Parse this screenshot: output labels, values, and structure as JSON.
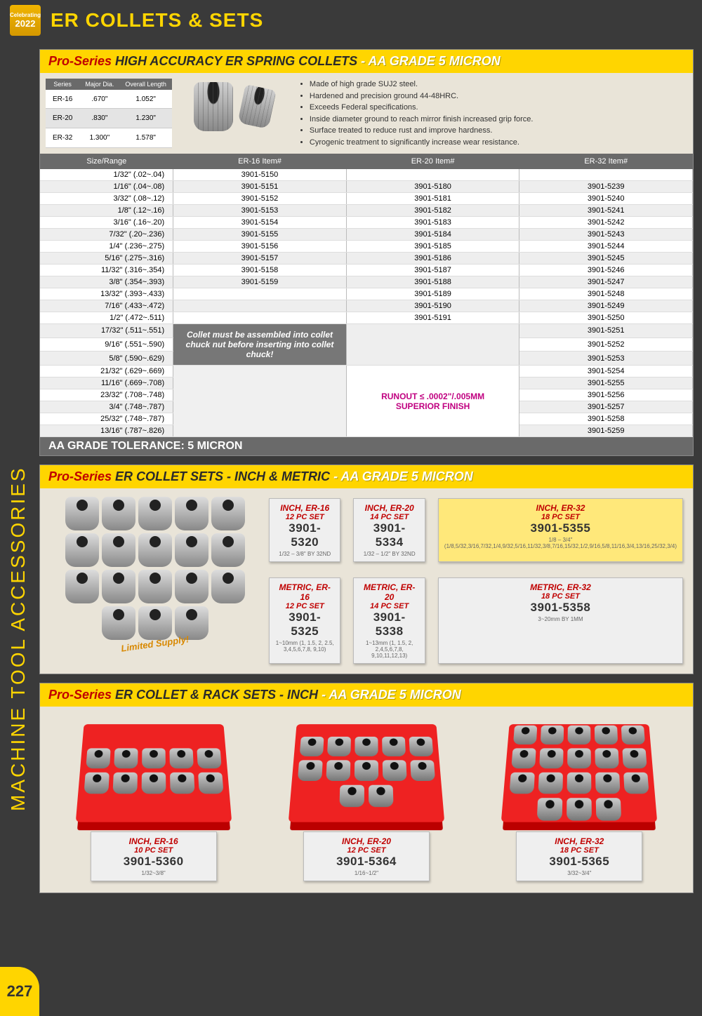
{
  "header": {
    "badge_top": "Celebrating",
    "badge_year": "2022",
    "title": "ER COLLETS & SETS"
  },
  "sidebar": {
    "text": "MACHINE TOOL ACCESSORIES",
    "page": "227"
  },
  "sec1": {
    "title_red": "Pro-Series ",
    "title_blk": "HIGH ACCURACY ER SPRING COLLETS ",
    "title_wh": "- AA GRADE 5 MICRON",
    "dim_head": [
      "Series",
      "Major Dia.",
      "Overall Length"
    ],
    "dim_rows": [
      [
        "ER-16",
        ".670\"",
        "1.052\""
      ],
      [
        "ER-20",
        ".830\"",
        "1.230\""
      ],
      [
        "ER-32",
        "1.300\"",
        "1.578\""
      ]
    ],
    "bullets": [
      "Made of high grade SUJ2 steel.",
      "Hardened and precision ground 44-48HRC.",
      "Exceeds Federal specifications.",
      "Inside diameter ground to reach mirror finish increased grip force.",
      "Surface treated to reduce rust and improve hardness.",
      "Cyrogenic treatment to significantly increase wear resistance."
    ],
    "cols": [
      "Size/Range",
      "ER-16 Item#",
      "ER-20 Item#",
      "ER-32 Item#"
    ],
    "rows": [
      {
        "s": "1/32\" (.02~.04)",
        "a": "3901-5150",
        "b": "",
        "c": ""
      },
      {
        "s": "1/16\" (.04~.08)",
        "a": "3901-5151",
        "b": "3901-5180",
        "c": "3901-5239"
      },
      {
        "s": "3/32\" (.08~.12)",
        "a": "3901-5152",
        "b": "3901-5181",
        "c": "3901-5240"
      },
      {
        "s": "1/8\" (.12~.16)",
        "a": "3901-5153",
        "b": "3901-5182",
        "c": "3901-5241"
      },
      {
        "s": "3/16\" (.16~.20)",
        "a": "3901-5154",
        "b": "3901-5183",
        "c": "3901-5242"
      },
      {
        "s": "7/32\" (.20~.236)",
        "a": "3901-5155",
        "b": "3901-5184",
        "c": "3901-5243"
      },
      {
        "s": "1/4\" (.236~.275)",
        "a": "3901-5156",
        "b": "3901-5185",
        "c": "3901-5244"
      },
      {
        "s": "5/16\" (.275~.316)",
        "a": "3901-5157",
        "b": "3901-5186",
        "c": "3901-5245"
      },
      {
        "s": "11/32\" (.316~.354)",
        "a": "3901-5158",
        "b": "3901-5187",
        "c": "3901-5246"
      },
      {
        "s": "3/8\" (.354~.393)",
        "a": "3901-5159",
        "b": "3901-5188",
        "c": "3901-5247"
      },
      {
        "s": "13/32\" (.393~.433)",
        "a": "",
        "b": "3901-5189",
        "c": "3901-5248"
      },
      {
        "s": "7/16\" (.433~.472)",
        "a": "",
        "b": "3901-5190",
        "c": "3901-5249"
      },
      {
        "s": "1/2\" (.472~.511)",
        "a": "",
        "b": "3901-5191",
        "c": "3901-5250"
      },
      {
        "s": "17/32\" (.511~.551)",
        "a": "",
        "b": "",
        "c": "3901-5251"
      },
      {
        "s": "9/16\" (.551~.590)",
        "a": "",
        "b": "",
        "c": "3901-5252"
      },
      {
        "s": "5/8\" (.590~.629)",
        "a": "",
        "b": "",
        "c": "3901-5253"
      },
      {
        "s": "21/32\" (.629~.669)",
        "a": "",
        "b": "",
        "c": "3901-5254"
      },
      {
        "s": "11/16\" (.669~.708)",
        "a": "",
        "b": "",
        "c": "3901-5255"
      },
      {
        "s": "23/32\" (.708~.748)",
        "a": "",
        "b": "",
        "c": "3901-5256"
      },
      {
        "s": "3/4\" (.748~.787)",
        "a": "",
        "b": "",
        "c": "3901-5257"
      },
      {
        "s": "25/32\" (.748~.787)",
        "a": "",
        "b": "",
        "c": "3901-5258"
      },
      {
        "s": "13/16\" (.787~.826)",
        "a": "",
        "b": "",
        "c": "3901-5259"
      }
    ],
    "note": "Collet must be assembled into collet chuck nut before inserting into collet chuck!",
    "runout1": "RUNOUT ≤ .0002\"/.005MM",
    "runout2": "SUPERIOR FINISH",
    "aa_bar": "AA GRADE TOLERANCE: 5 MICRON"
  },
  "sec2": {
    "title_red": "Pro-Series ",
    "title_blk": "ER COLLET SETS - INCH & METRIC ",
    "title_wh": "- AA GRADE 5 MICRON",
    "limited": "Limited Supply!",
    "boxes": [
      {
        "t": "INCH, ER-16",
        "p": "12 PC SET",
        "n": "3901-5320",
        "r": "1/32 – 3/8\" BY 32ND",
        "cls": ""
      },
      {
        "t": "INCH, ER-20",
        "p": "14 PC SET",
        "n": "3901-5334",
        "r": "1/32 – 1/2\" BY 32ND",
        "cls": ""
      },
      {
        "t": "INCH, ER-32",
        "p": "18 PC SET",
        "n": "3901-5355",
        "r": "1/8 – 3/4\" (1/8,5/32,3/16,7/32,1/4,9/32,5/16,11/32,3/8,7/16,15/32,1/2,9/16,5/8,11/16,3/4,13/16,25/32,3/4)",
        "cls": "yellow"
      },
      {
        "t": "METRIC, ER-16",
        "p": "12 PC SET",
        "n": "3901-5325",
        "r": "1~10mm (1, 1.5, 2, 2.5, 3,4,5,6,7,8, 9,10)",
        "cls": ""
      },
      {
        "t": "METRIC, ER-20",
        "p": "14 PC SET",
        "n": "3901-5338",
        "r": "1~13mm (1, 1.5, 2, 2,4,5,6,7,8, 9,10,11,12,13)",
        "cls": ""
      },
      {
        "t": "METRIC, ER-32",
        "p": "18 PC SET",
        "n": "3901-5358",
        "r": "3~20mm BY 1MM",
        "cls": ""
      }
    ]
  },
  "sec3": {
    "title_red": "Pro-Series ",
    "title_blk": "ER COLLET & RACK SETS - INCH ",
    "title_wh": "- AA GRADE 5 MICRON",
    "racks": [
      {
        "t": "INCH, ER-16",
        "p": "10 PC SET",
        "n": "3901-5360",
        "r": "1/32~3/8\"",
        "cnt": 10
      },
      {
        "t": "INCH, ER-20",
        "p": "12 PC SET",
        "n": "3901-5364",
        "r": "1/16~1/2\"",
        "cnt": 12
      },
      {
        "t": "INCH, ER-32",
        "p": "18 PC SET",
        "n": "3901-5365",
        "r": "3/32~3/4\"",
        "cnt": 18
      }
    ]
  }
}
